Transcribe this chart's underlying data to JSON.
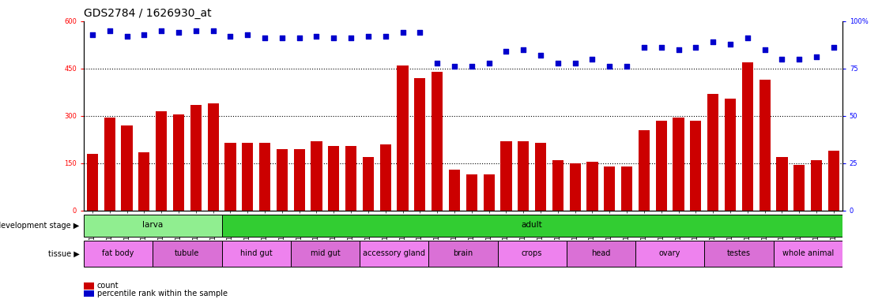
{
  "title": "GDS2784 / 1626930_at",
  "samples": [
    "GSM188092",
    "GSM188093",
    "GSM188094",
    "GSM188095",
    "GSM188100",
    "GSM188101",
    "GSM188102",
    "GSM188103",
    "GSM188072",
    "GSM188073",
    "GSM188074",
    "GSM188075",
    "GSM188076",
    "GSM188077",
    "GSM188078",
    "GSM188079",
    "GSM188080",
    "GSM188081",
    "GSM188082",
    "GSM188083",
    "GSM188084",
    "GSM188085",
    "GSM188086",
    "GSM188087",
    "GSM188088",
    "GSM188089",
    "GSM188090",
    "GSM188091",
    "GSM188096",
    "GSM188097",
    "GSM188098",
    "GSM188099",
    "GSM188104",
    "GSM188105",
    "GSM188106",
    "GSM188107",
    "GSM188108",
    "GSM188109",
    "GSM188110",
    "GSM188111",
    "GSM188112",
    "GSM188113",
    "GSM188114",
    "GSM188115"
  ],
  "counts": [
    180,
    295,
    270,
    185,
    315,
    305,
    335,
    340,
    215,
    215,
    215,
    195,
    195,
    220,
    205,
    205,
    170,
    210,
    460,
    420,
    440,
    130,
    115,
    115,
    220,
    220,
    215,
    160,
    150,
    155,
    140,
    140,
    255,
    285,
    295,
    285,
    370,
    355,
    470,
    415,
    170,
    145,
    160,
    190
  ],
  "percentiles": [
    93,
    95,
    92,
    93,
    95,
    94,
    95,
    95,
    92,
    93,
    91,
    91,
    91,
    92,
    91,
    91,
    92,
    92,
    94,
    94,
    78,
    76,
    76,
    78,
    84,
    85,
    82,
    78,
    78,
    80,
    76,
    76,
    86,
    86,
    85,
    86,
    89,
    88,
    91,
    85,
    80,
    80,
    81,
    86
  ],
  "dev_stage_groups": [
    {
      "label": "larva",
      "start": 0,
      "end": 7,
      "color": "#90EE90"
    },
    {
      "label": "adult",
      "start": 8,
      "end": 43,
      "color": "#32CD32"
    }
  ],
  "tissue_groups": [
    {
      "label": "fat body",
      "start": 0,
      "end": 3,
      "color": "#EE82EE"
    },
    {
      "label": "tubule",
      "start": 4,
      "end": 7,
      "color": "#DA70D6"
    },
    {
      "label": "hind gut",
      "start": 8,
      "end": 11,
      "color": "#EE82EE"
    },
    {
      "label": "mid gut",
      "start": 12,
      "end": 15,
      "color": "#DA70D6"
    },
    {
      "label": "accessory gland",
      "start": 16,
      "end": 19,
      "color": "#EE82EE"
    },
    {
      "label": "brain",
      "start": 20,
      "end": 23,
      "color": "#DA70D6"
    },
    {
      "label": "crops",
      "start": 24,
      "end": 27,
      "color": "#EE82EE"
    },
    {
      "label": "head",
      "start": 28,
      "end": 31,
      "color": "#DA70D6"
    },
    {
      "label": "ovary",
      "start": 32,
      "end": 35,
      "color": "#EE82EE"
    },
    {
      "label": "testes",
      "start": 36,
      "end": 39,
      "color": "#DA70D6"
    },
    {
      "label": "whole animal",
      "start": 40,
      "end": 43,
      "color": "#EE82EE"
    }
  ],
  "bar_color": "#CC0000",
  "dot_color": "#0000CC",
  "ylim_left": [
    0,
    600
  ],
  "ylim_right": [
    0,
    100
  ],
  "yticks_left": [
    0,
    150,
    300,
    450,
    600
  ],
  "yticks_right": [
    0,
    25,
    50,
    75,
    100
  ],
  "title_fontsize": 10,
  "tick_fontsize": 6,
  "label_fontsize": 7,
  "row_label_fontsize": 7,
  "annot_fontsize": 7.5
}
